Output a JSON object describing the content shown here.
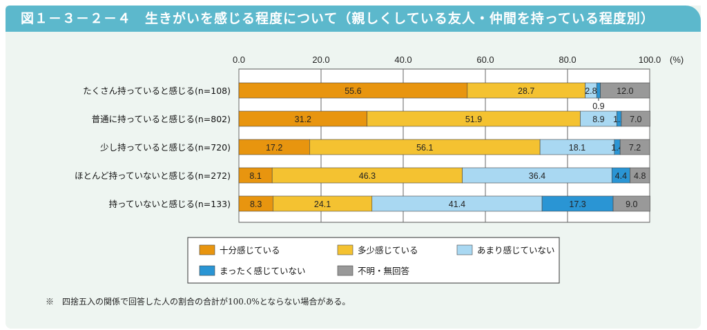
{
  "title": "図１－３－２－４　生きがいを感じる程度について（親しくしている友人・仲間を持っている程度別）",
  "note": "※　四捨五入の関係で回答した人の割合の合計が100.0%とならない場合がある。",
  "colors": {
    "title_bg": "#5cb8cc",
    "panel_bg": "#eef5f1",
    "series": [
      "#e8950f",
      "#f4c231",
      "#a9d8f2",
      "#2a95d4",
      "#999999"
    ]
  },
  "chart_data": {
    "type": "bar",
    "orientation": "horizontal",
    "stacked": true,
    "x_ticks": [
      "0.0",
      "20.0",
      "40.0",
      "60.0",
      "80.0",
      "100.0"
    ],
    "x_unit": "(%)",
    "xlim": [
      0,
      100
    ],
    "grid": true,
    "legend_position": "bottom",
    "categories": [
      "たくさん持っていると感じる(n=108)",
      "普通に持っていると感じる(n=802)",
      "少し持っていると感じる(n=720)",
      "ほとんど持っていないと感じる(n=272)",
      "持っていないと感じる(n=133)"
    ],
    "series": [
      {
        "name": "十分感じている",
        "values": [
          55.6,
          31.2,
          17.2,
          8.1,
          8.3
        ]
      },
      {
        "name": "多少感じている",
        "values": [
          28.7,
          51.9,
          56.1,
          46.3,
          24.1
        ]
      },
      {
        "name": "あまり感じていない",
        "values": [
          2.8,
          8.9,
          18.1,
          36.4,
          41.4
        ]
      },
      {
        "name": "まったく感じていない",
        "values": [
          0.9,
          1.1,
          1.4,
          4.4,
          17.3
        ]
      },
      {
        "name": "不明・無回答",
        "values": [
          12.0,
          7.0,
          7.2,
          4.8,
          9.0
        ]
      }
    ],
    "data_labels": [
      [
        "55.6",
        "28.7",
        "2.8",
        "",
        "12.0"
      ],
      [
        "31.2",
        "51.9",
        "8.9",
        "1.1",
        "7.0"
      ],
      [
        "17.2",
        "56.1",
        "18.1",
        "1.4",
        "7.2"
      ],
      [
        "8.1",
        "46.3",
        "36.4",
        "4.4",
        "4.8"
      ],
      [
        "8.3",
        "24.1",
        "41.4",
        "17.3",
        "9.0"
      ]
    ],
    "callout_label": "0.9"
  }
}
